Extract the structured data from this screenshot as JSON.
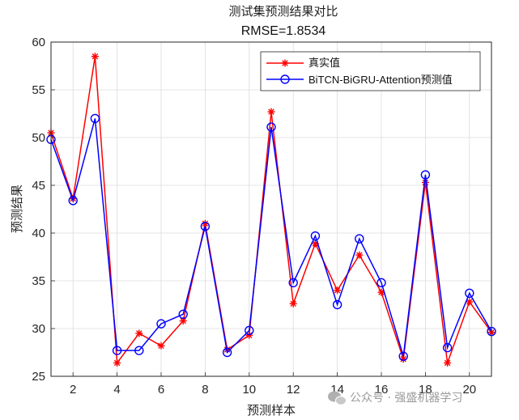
{
  "chart_data": {
    "type": "line",
    "title": "测试集预测结果对比",
    "subtitle": "RMSE=1.8534",
    "xlabel": "预测样本",
    "ylabel": "预测结果",
    "xlim": [
      1,
      21
    ],
    "ylim": [
      25,
      60
    ],
    "xticks": [
      2,
      4,
      6,
      8,
      10,
      12,
      14,
      16,
      18,
      20
    ],
    "yticks": [
      25,
      30,
      35,
      40,
      45,
      50,
      55,
      60
    ],
    "grid": true,
    "legend_position": "top-right",
    "x": [
      1,
      2,
      3,
      4,
      5,
      6,
      7,
      8,
      9,
      10,
      11,
      12,
      13,
      14,
      15,
      16,
      17,
      18,
      19,
      20,
      21
    ],
    "series": [
      {
        "name": "真实值",
        "color": "#ff0000",
        "marker": "asterisk",
        "values": [
          50.5,
          43.6,
          58.5,
          26.4,
          29.5,
          28.2,
          30.8,
          41.0,
          27.8,
          29.3,
          52.7,
          32.6,
          38.9,
          34.0,
          37.7,
          33.8,
          26.8,
          45.3,
          26.4,
          32.8,
          29.6
        ]
      },
      {
        "name": "BiTCN-BiGRU-Attention预测值",
        "color": "#0000ff",
        "marker": "circle",
        "values": [
          49.8,
          43.4,
          52.0,
          27.7,
          27.7,
          30.5,
          31.5,
          40.7,
          27.5,
          29.8,
          51.1,
          34.8,
          39.7,
          32.5,
          39.4,
          34.8,
          27.1,
          46.1,
          28.0,
          33.7,
          29.7
        ]
      }
    ]
  },
  "watermark": {
    "icon": "wechat-icon",
    "text": "公众号 · 强盛机器学习"
  }
}
